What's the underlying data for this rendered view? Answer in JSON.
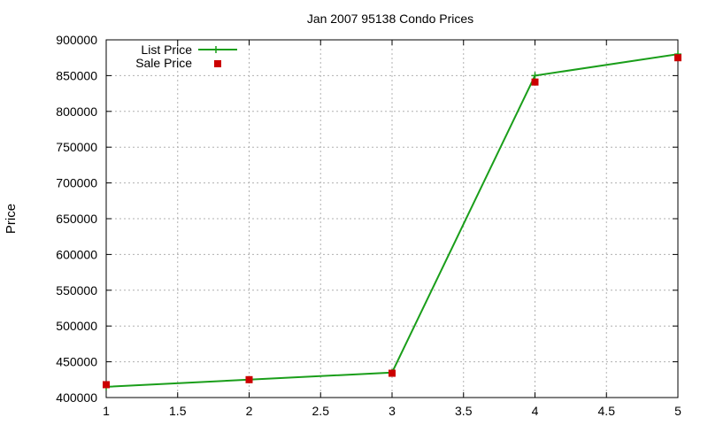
{
  "chart_data": {
    "type": "line",
    "title": "Jan 2007 95138 Condo Prices",
    "xlabel": "",
    "ylabel": "Price",
    "xlim": [
      1,
      5
    ],
    "ylim": [
      400000,
      900000
    ],
    "x_ticks": [
      "1",
      "1.5",
      "2",
      "2.5",
      "3",
      "3.5",
      "4",
      "4.5",
      "5"
    ],
    "y_ticks": [
      "400000",
      "450000",
      "500000",
      "550000",
      "600000",
      "650000",
      "700000",
      "750000",
      "800000",
      "850000",
      "900000"
    ],
    "grid": true,
    "legend_position": "top-left",
    "series": [
      {
        "name": "List Price",
        "style": "line+cross",
        "color": "#1a9e1a",
        "x": [
          1,
          2,
          3,
          4,
          5
        ],
        "y": [
          415000,
          425000,
          435000,
          850000,
          880000
        ]
      },
      {
        "name": "Sale Price",
        "style": "square-markers",
        "color": "#cc0000",
        "x": [
          1,
          2,
          3,
          4,
          5
        ],
        "y": [
          418000,
          425000,
          434000,
          841000,
          875000
        ]
      }
    ]
  }
}
